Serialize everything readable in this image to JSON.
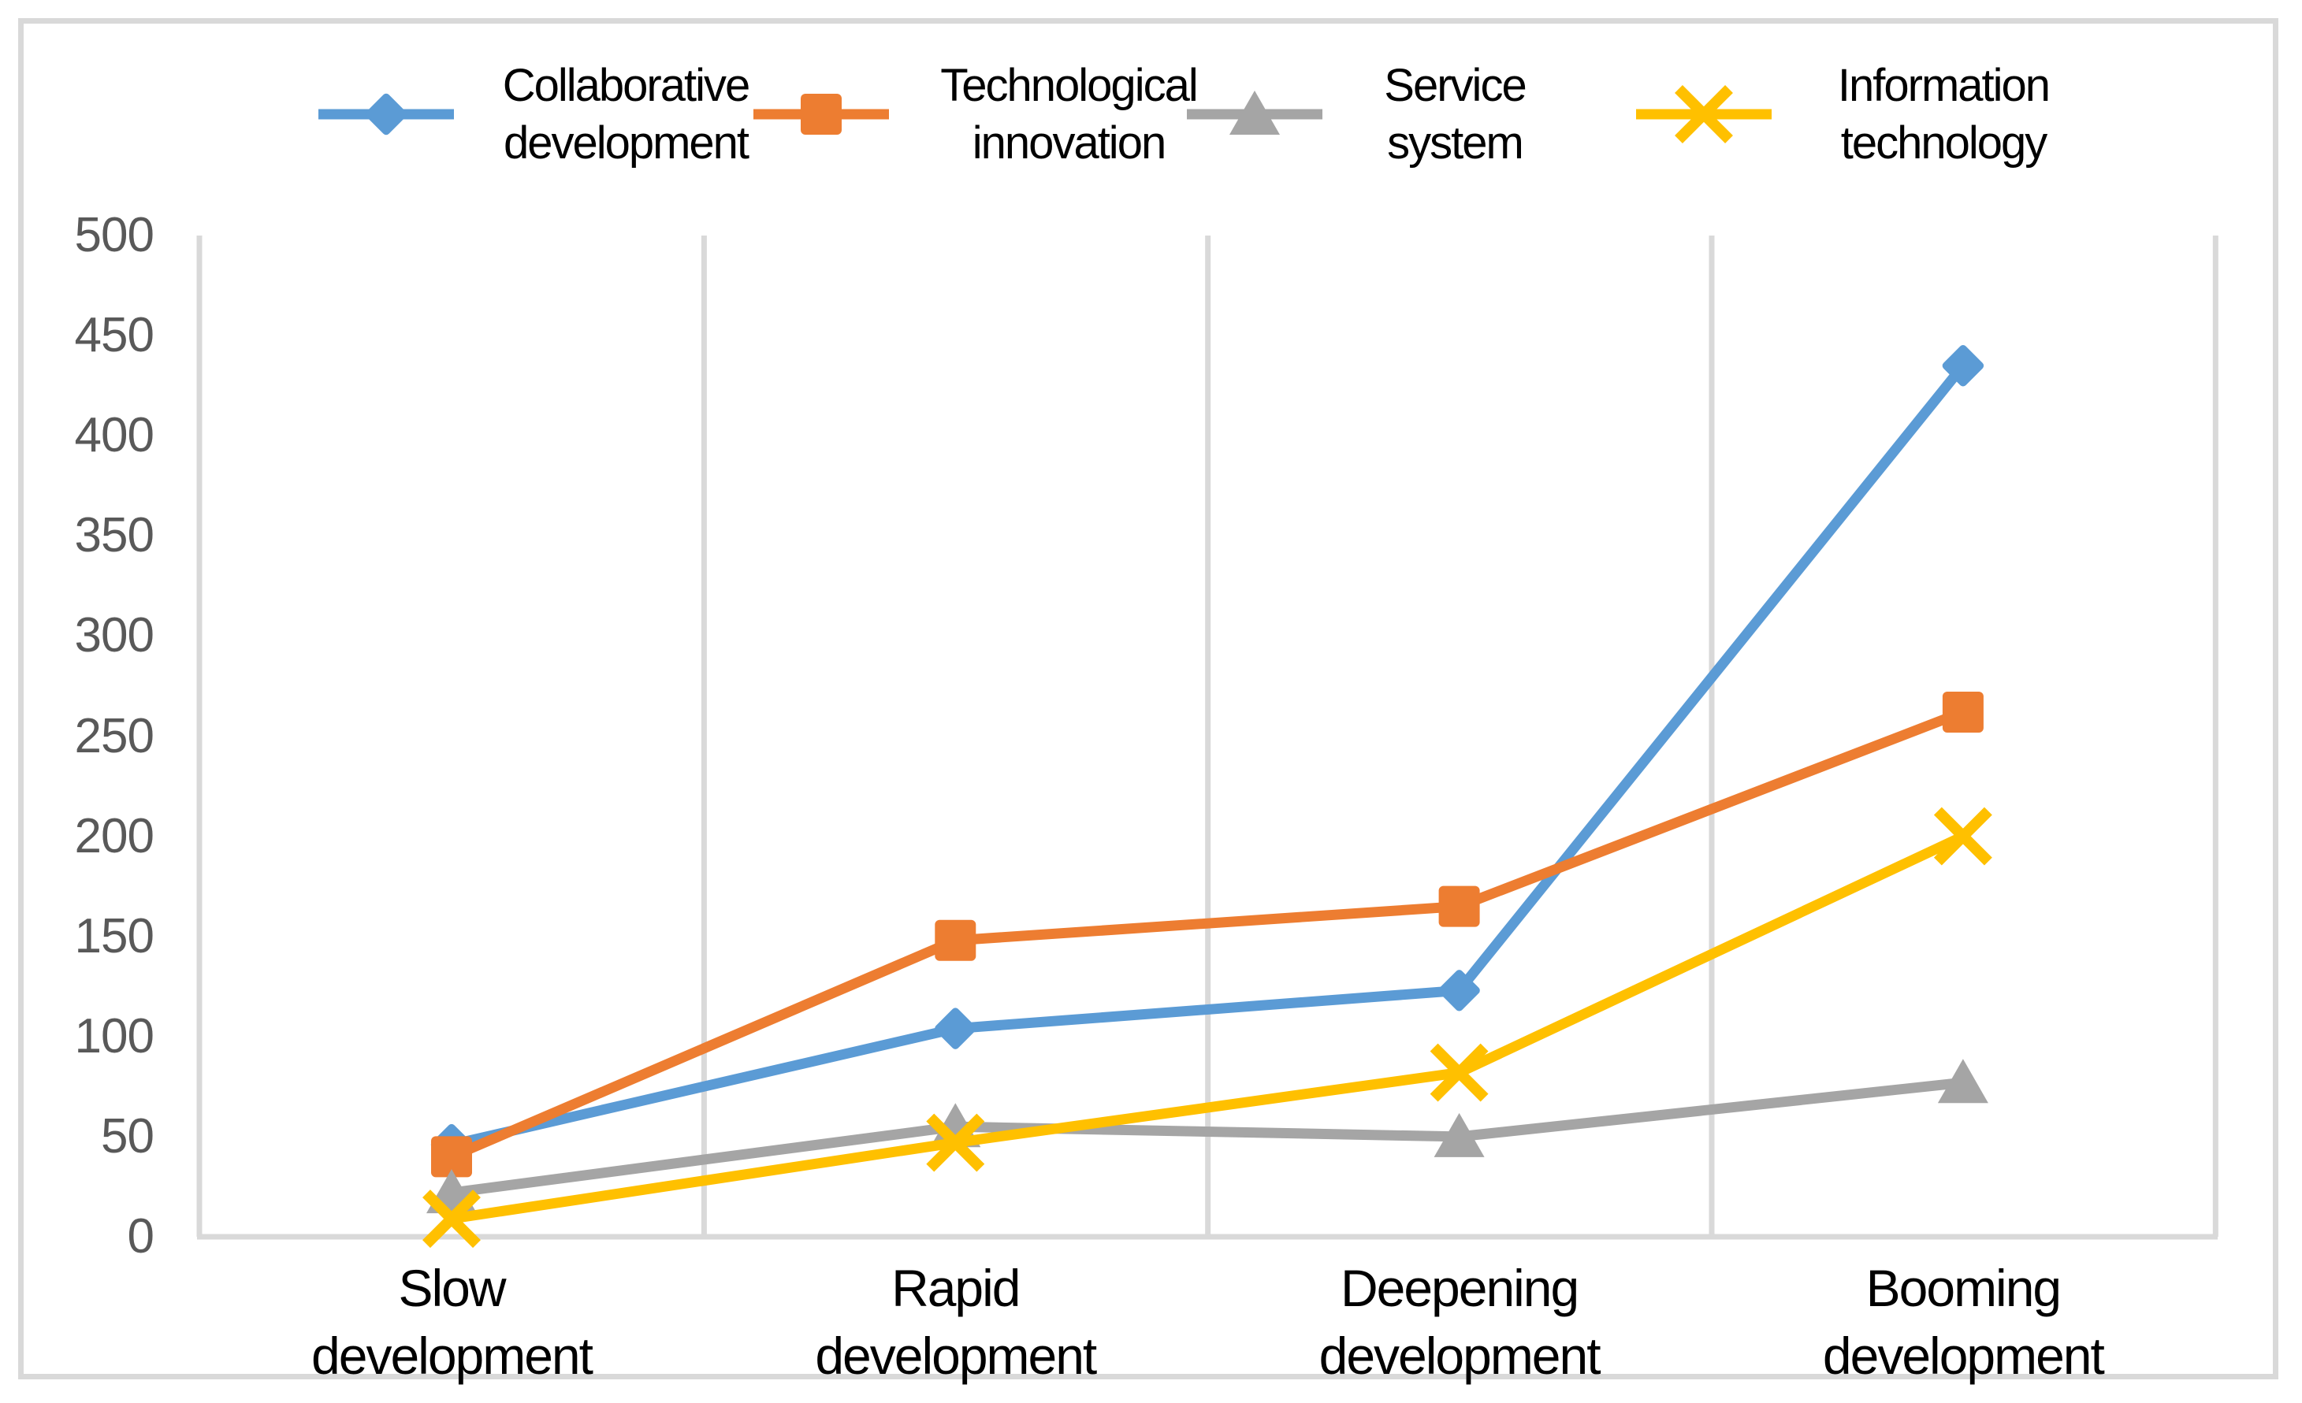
{
  "chart_data": {
    "type": "line",
    "title": "",
    "xlabel": "",
    "ylabel": "",
    "categories": [
      "Slow development",
      "Rapid development",
      "Deepening development",
      "Booming development"
    ],
    "series": [
      {
        "name": "Collaborative development",
        "color": "#5B9BD5",
        "marker": "diamond",
        "values": [
          46,
          104,
          123,
          435
        ]
      },
      {
        "name": "Technological innovation",
        "color": "#ED7D31",
        "marker": "square",
        "values": [
          40,
          148,
          165,
          262
        ]
      },
      {
        "name": "Service system",
        "color": "#A5A5A5",
        "marker": "triangle",
        "values": [
          22,
          55,
          50,
          77
        ]
      },
      {
        "name": "Information technology",
        "color": "#FFC000",
        "marker": "x",
        "values": [
          9,
          47,
          82,
          200
        ]
      }
    ],
    "yticks": [
      500,
      450,
      400,
      350,
      300,
      250,
      200,
      150,
      100,
      50,
      0
    ],
    "ylim": [
      0,
      500
    ],
    "grid": "vertical-category-boundaries-only",
    "legend_position": "top"
  },
  "colors": {
    "gridline": "#D9D9D9",
    "axis_line": "#D9D9D9",
    "chart_border": "#D9D9D9",
    "tick_label": "#595959",
    "category_label": "#000000",
    "legend_text": "#000000",
    "background": "#FFFFFF"
  }
}
